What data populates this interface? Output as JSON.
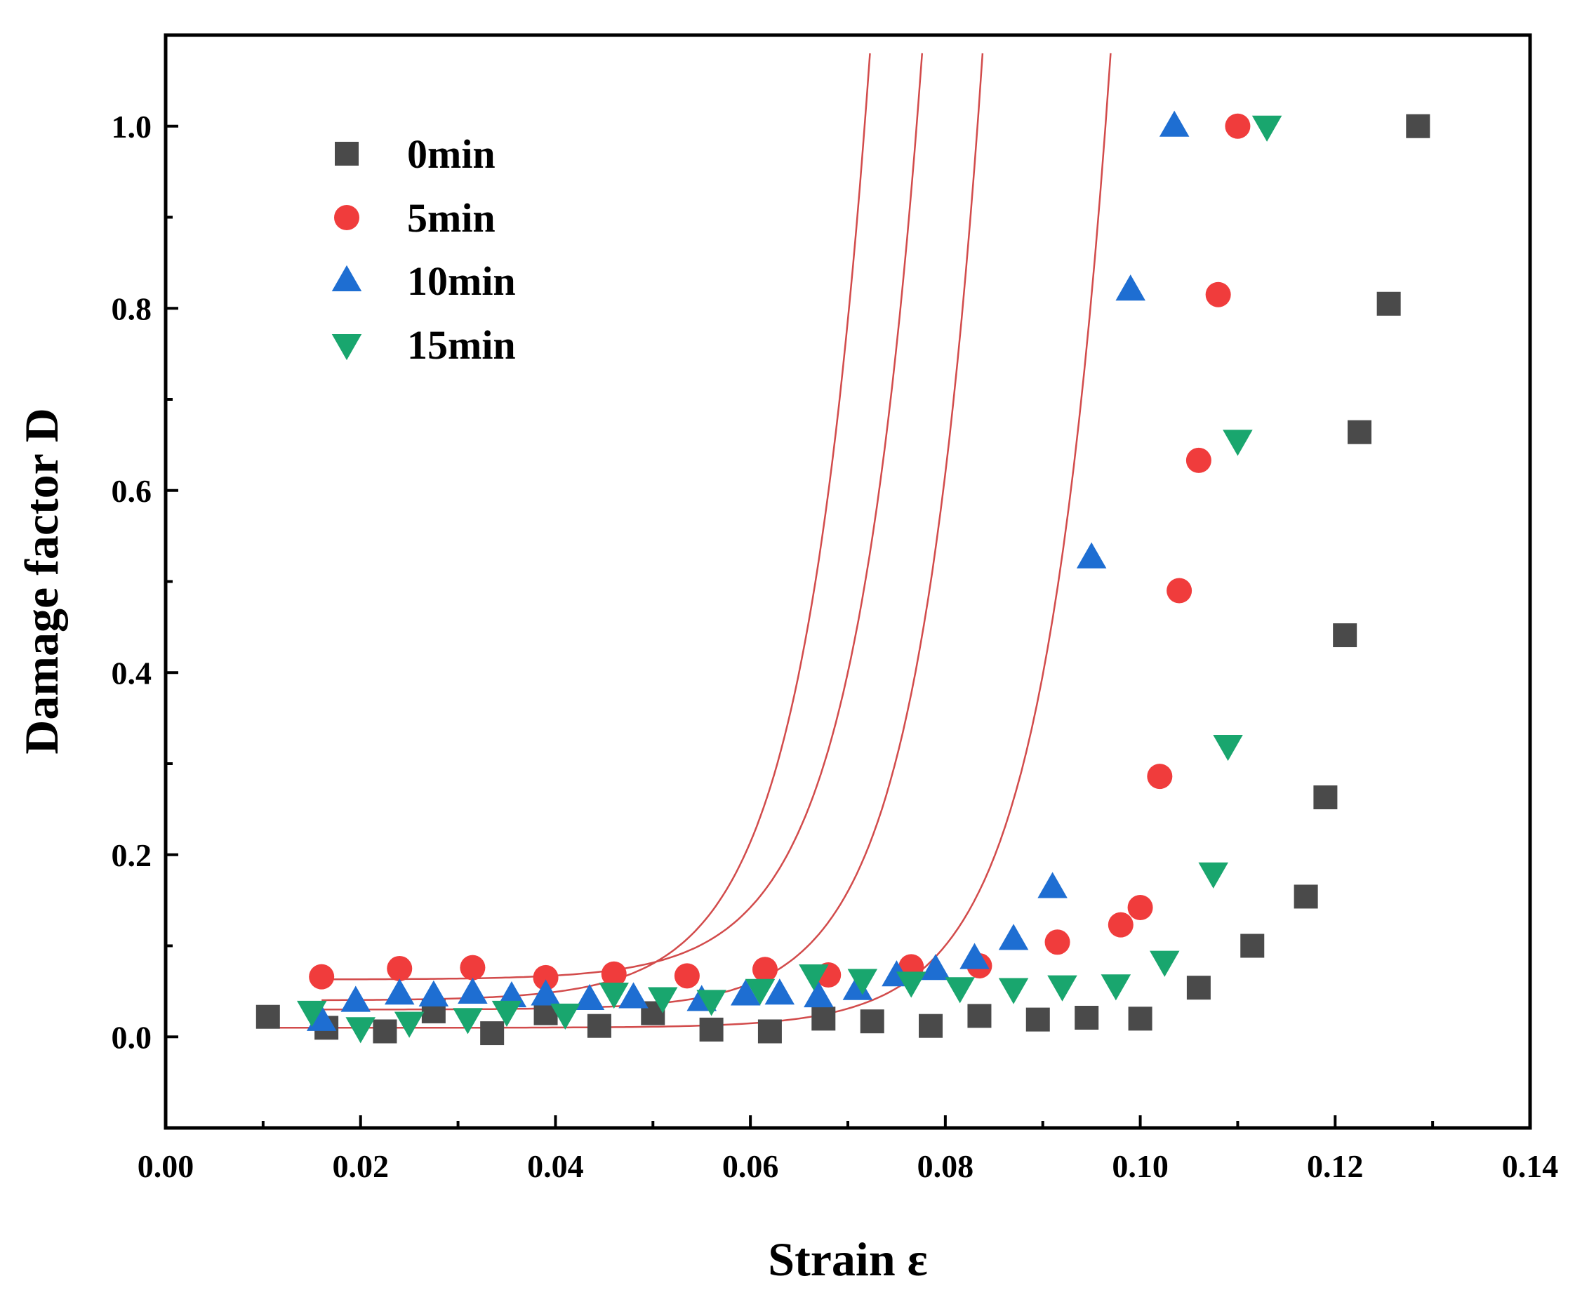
{
  "chart_data": {
    "type": "scatter",
    "title": "",
    "xlabel": "Strain ε",
    "ylabel": "Damage factor D",
    "xlim": [
      0.0,
      0.14
    ],
    "ylim": [
      -0.1,
      1.1
    ],
    "xticks": [
      "0.00",
      "0.02",
      "0.04",
      "0.06",
      "0.08",
      "0.10",
      "0.12",
      "0.14"
    ],
    "yticks": [
      "0.0",
      "0.2",
      "0.4",
      "0.6",
      "0.8",
      "1.0"
    ],
    "grid": false,
    "legend_position": "top-left",
    "fit_line_color": "#d24b4b",
    "series": [
      {
        "name": "0min",
        "marker": "square",
        "color": "#4a4a4a",
        "x": [
          0.0105,
          0.0165,
          0.0225,
          0.0275,
          0.0335,
          0.039,
          0.0445,
          0.05,
          0.056,
          0.062,
          0.0675,
          0.0725,
          0.0785,
          0.0835,
          0.0895,
          0.0945,
          0.1,
          0.106,
          0.1115,
          0.117,
          0.119,
          0.121,
          0.1225,
          0.1255,
          0.1285
        ],
        "y": [
          0.022,
          0.01,
          0.006,
          0.028,
          0.004,
          0.026,
          0.012,
          0.026,
          0.008,
          0.006,
          0.02,
          0.017,
          0.012,
          0.023,
          0.019,
          0.021,
          0.02,
          0.054,
          0.1,
          0.154,
          0.263,
          0.441,
          0.664,
          0.805,
          1.0
        ],
        "fit": {
          "base": 0.01,
          "x0": 0.0965,
          "k": 0.00686
        }
      },
      {
        "name": "5min",
        "marker": "circle",
        "color": "#f03c3c",
        "x": [
          0.016,
          0.024,
          0.0315,
          0.039,
          0.046,
          0.0535,
          0.0615,
          0.068,
          0.0765,
          0.0835,
          0.0915,
          0.098,
          0.1,
          0.102,
          0.104,
          0.106,
          0.108,
          0.11
        ],
        "y": [
          0.066,
          0.075,
          0.076,
          0.065,
          0.069,
          0.067,
          0.074,
          0.068,
          0.077,
          0.078,
          0.104,
          0.123,
          0.142,
          0.286,
          0.49,
          0.633,
          0.815,
          1.0
        ],
        "fit": {
          "base": 0.063,
          "x0": 0.0775,
          "k": 0.0069
        }
      },
      {
        "name": "10min",
        "marker": "triangle-up",
        "color": "#1e6ed2",
        "x": [
          0.016,
          0.0195,
          0.024,
          0.0275,
          0.0315,
          0.0355,
          0.039,
          0.0435,
          0.048,
          0.055,
          0.0595,
          0.063,
          0.067,
          0.071,
          0.075,
          0.079,
          0.083,
          0.087,
          0.091,
          0.095,
          0.099,
          0.1035
        ],
        "y": [
          0.018,
          0.039,
          0.047,
          0.045,
          0.048,
          0.044,
          0.046,
          0.041,
          0.043,
          0.04,
          0.046,
          0.047,
          0.044,
          0.052,
          0.067,
          0.074,
          0.086,
          0.107,
          0.164,
          0.526,
          0.82,
          1.0
        ],
        "fit": {
          "base": 0.04,
          "x0": 0.072,
          "k": 0.00686
        }
      },
      {
        "name": "15min",
        "marker": "triangle-down",
        "color": "#19a66e",
        "x": [
          0.015,
          0.02,
          0.025,
          0.031,
          0.035,
          0.041,
          0.046,
          0.051,
          0.056,
          0.061,
          0.0665,
          0.0715,
          0.0765,
          0.0815,
          0.087,
          0.092,
          0.0975,
          0.1025,
          0.1075,
          0.109,
          0.11,
          0.113
        ],
        "y": [
          0.028,
          0.01,
          0.016,
          0.02,
          0.028,
          0.025,
          0.048,
          0.043,
          0.04,
          0.052,
          0.068,
          0.063,
          0.06,
          0.054,
          0.053,
          0.056,
          0.057,
          0.083,
          0.18,
          0.32,
          0.655,
          1.0
        ],
        "fit": {
          "base": 0.03,
          "x0": 0.0835,
          "k": 0.00661
        }
      }
    ]
  }
}
